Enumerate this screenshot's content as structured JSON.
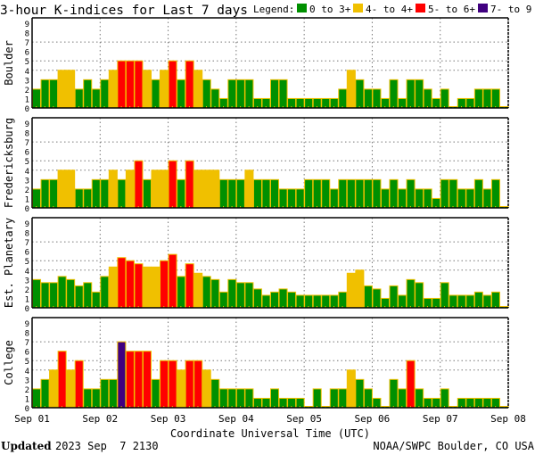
{
  "title": "3-hour K-indices for Last 7 days",
  "legend": {
    "label": "Legend:",
    "items": [
      {
        "label": "0 to 3+",
        "color": "#009000"
      },
      {
        "label": "4- to 4+",
        "color": "#f0c000"
      },
      {
        "label": "5- to 6+",
        "color": "#ff0000"
      },
      {
        "label": "7- to 9",
        "color": "#400080"
      }
    ]
  },
  "footer": {
    "updated_label": "Updated",
    "updated_value": "2023 Sep  7 2130",
    "source": "NOAA/SWPC Boulder, CO USA"
  },
  "chart_data": [
    {
      "type": "bar",
      "ylabel": "Boulder",
      "ylim": [
        0,
        9
      ],
      "yticks": [
        "0",
        "1",
        "2",
        "3",
        "4",
        "5",
        "6",
        "7",
        "8",
        "9"
      ],
      "x_ticks": [
        "Sep 01",
        "Sep 02",
        "Sep 03",
        "Sep 04",
        "Sep 05",
        "Sep 06",
        "Sep 07",
        "Sep 08"
      ],
      "values": [
        2,
        3,
        3,
        4,
        4,
        2,
        3,
        2,
        3,
        4,
        5,
        5,
        5,
        4,
        3,
        4,
        5,
        3,
        5,
        4,
        3,
        2,
        1,
        3,
        3,
        3,
        1,
        1,
        3,
        3,
        1,
        1,
        1,
        1,
        1,
        1,
        2,
        4,
        3,
        2,
        2,
        1,
        3,
        1,
        3,
        3,
        2,
        1,
        2,
        0,
        1,
        1,
        2,
        2,
        2,
        0
      ]
    },
    {
      "type": "bar",
      "ylabel": "Fredericksburg",
      "ylim": [
        0,
        9
      ],
      "yticks": [
        "0",
        "1",
        "2",
        "3",
        "4",
        "5",
        "6",
        "7",
        "8",
        "9"
      ],
      "x_ticks": [
        "Sep 01",
        "Sep 02",
        "Sep 03",
        "Sep 04",
        "Sep 05",
        "Sep 06",
        "Sep 07",
        "Sep 08"
      ],
      "values": [
        2,
        3,
        3,
        4,
        4,
        2,
        2,
        3,
        3,
        4,
        3,
        4,
        5,
        3,
        4,
        4,
        5,
        3,
        5,
        4,
        4,
        4,
        3,
        3,
        3,
        4,
        3,
        3,
        3,
        2,
        2,
        2,
        3,
        3,
        3,
        2,
        3,
        3,
        3,
        3,
        3,
        2,
        3,
        2,
        3,
        2,
        2,
        1,
        3,
        3,
        2,
        2,
        3,
        2,
        3,
        0
      ]
    },
    {
      "type": "bar",
      "ylabel": "Est. Planetary",
      "ylim": [
        0,
        9
      ],
      "yticks": [
        "0",
        "1",
        "2",
        "3",
        "4",
        "5",
        "6",
        "7",
        "8",
        "9"
      ],
      "x_ticks": [
        "Sep 01",
        "Sep 02",
        "Sep 03",
        "Sep 04",
        "Sep 05",
        "Sep 06",
        "Sep 07",
        "Sep 08"
      ],
      "values": [
        3,
        2.67,
        2.67,
        3.33,
        3,
        2.33,
        2.67,
        1.67,
        3.33,
        4.33,
        5.33,
        5,
        4.67,
        4.33,
        4.33,
        5,
        5.67,
        3.33,
        4.67,
        3.67,
        3.33,
        3,
        1.67,
        3,
        2.67,
        2.67,
        2,
        1.33,
        1.67,
        2,
        1.67,
        1.33,
        1.33,
        1.33,
        1.33,
        1.33,
        1.67,
        3.67,
        4,
        2.33,
        2,
        1,
        2.33,
        1.33,
        3,
        2.67,
        1,
        1,
        2.67,
        1.33,
        1.33,
        1.33,
        1.67,
        1.33,
        1.67,
        0
      ]
    },
    {
      "type": "bar",
      "ylabel": "College",
      "ylim": [
        0,
        9
      ],
      "yticks": [
        "0",
        "1",
        "2",
        "3",
        "4",
        "5",
        "6",
        "7",
        "8",
        "9"
      ],
      "x_ticks": [
        "Sep 01",
        "Sep 02",
        "Sep 03",
        "Sep 04",
        "Sep 05",
        "Sep 06",
        "Sep 07",
        "Sep 08"
      ],
      "xlabel": "Coordinate Universal Time (UTC)",
      "values": [
        2,
        3,
        4,
        6,
        4,
        5,
        2,
        2,
        3,
        3,
        7,
        6,
        6,
        6,
        3,
        5,
        5,
        4,
        5,
        5,
        4,
        3,
        2,
        2,
        2,
        2,
        1,
        1,
        2,
        1,
        1,
        1,
        0,
        2,
        0,
        2,
        2,
        4,
        3,
        2,
        1,
        0,
        3,
        2,
        5,
        2,
        1,
        1,
        2,
        0,
        1,
        1,
        1,
        1,
        1,
        0
      ]
    }
  ]
}
